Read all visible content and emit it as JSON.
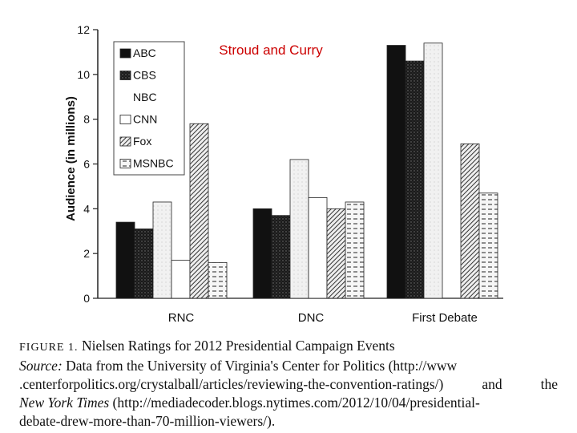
{
  "chart_data": {
    "type": "bar",
    "overlay_title": "Stroud and Curry",
    "ylabel": "Audience (in millions)",
    "xlabel": "",
    "ylim": [
      0,
      12
    ],
    "yticks": [
      "0",
      "2",
      "4",
      "6",
      "8",
      "10",
      "12"
    ],
    "categories": [
      "RNC",
      "DNC",
      "First Debate"
    ],
    "legend_position": "top-left",
    "grid": false,
    "series": [
      {
        "name": "ABC",
        "values": [
          3.4,
          4.0,
          11.3
        ],
        "fill": "#111111",
        "pattern": "solid"
      },
      {
        "name": "CBS",
        "values": [
          3.1,
          3.7,
          10.6
        ],
        "fill": "#2b2b2b",
        "pattern": "dots"
      },
      {
        "name": "NBC",
        "values": [
          4.3,
          6.2,
          11.4
        ],
        "fill": "#ececec",
        "pattern": "light"
      },
      {
        "name": "CNN",
        "values": [
          1.7,
          4.5,
          null
        ],
        "fill": "#ffffff",
        "pattern": "white"
      },
      {
        "name": "Fox",
        "values": [
          7.8,
          4.0,
          6.9
        ],
        "fill": "#777777",
        "pattern": "diagonal"
      },
      {
        "name": "MSNBC",
        "values": [
          1.6,
          4.3,
          4.7
        ],
        "fill": "#dcdcdc",
        "pattern": "dashes"
      }
    ]
  },
  "caption": {
    "figure_label": "FIGURE 1.",
    "figure_title": "Nielsen Ratings for 2012 Presidential Campaign Events",
    "source_label": "Source:",
    "line1_text": "Data from the University of Virginia's Center for Politics (http://www",
    "line2_left": ".centerforpolitics.org/crystalball/articles/reviewing-the-convention-ratings/)",
    "line2_and": "and",
    "line2_the": "the",
    "nyt": "New York Times",
    "line3_text": "(http://mediadecoder.blogs.nytimes.com/2012/10/04/presidential-",
    "line4_text": "debate-drew-more-than-70-million-viewers/)."
  }
}
